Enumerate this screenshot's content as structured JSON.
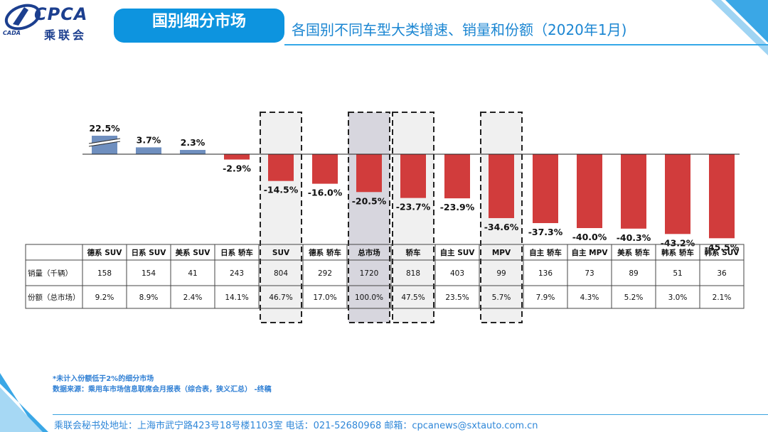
{
  "header": {
    "logo_en": "CPCA",
    "logo_cn": "乘联会",
    "logo_sub": "CADA",
    "tab_title": "国别细分市场",
    "title": "各国别不同车型大类增速、销量和份额（2020年1月)"
  },
  "colors": {
    "positive_bar": "#6f8fbf",
    "negative_bar": "#d13c3c",
    "highlight_fill": "#f0f0f0",
    "highlight_dark_fill": "#d7d6de",
    "accent_blue": "#0d94df"
  },
  "chart_data": {
    "type": "bar",
    "title": "各国别不同车型大类增速、销量和份额（2020年1月)",
    "categories": [
      "德系 SUV",
      "日系 SUV",
      "美系 SUV",
      "日系 轿车",
      "SUV",
      "德系 轿车",
      "总市场",
      "轿车",
      "自主 SUV",
      "MPV",
      "自主 轿车",
      "自主 MPV",
      "美系 轿车",
      "韩系 轿车",
      "韩系 SUV"
    ],
    "series": [
      {
        "values": [
          22.5,
          3.7,
          2.3,
          -2.9,
          -14.5,
          -16.0,
          -20.5,
          -23.7,
          -23.9,
          -34.6,
          -37.3,
          -40.0,
          -40.3,
          -43.2,
          -45.5
        ]
      }
    ],
    "value_labels": [
      "22.5%",
      "3.7%",
      "2.3%",
      "-2.9%",
      "-14.5%",
      "-16.0%",
      "-20.5%",
      "-23.7%",
      "-23.9%",
      "-34.6%",
      "-37.3%",
      "-40.0%",
      "-40.3%",
      "-43.2%",
      "-45.5%"
    ],
    "axis_break_category": "德系 SUV",
    "highlighted_categories": [
      "SUV",
      "总市场",
      "轿车",
      "MPV"
    ],
    "table": {
      "rows": [
        {
          "label": "销量（千辆）",
          "values": [
            "158",
            "154",
            "41",
            "243",
            "804",
            "292",
            "1720",
            "818",
            "403",
            "99",
            "136",
            "73",
            "89",
            "51",
            "36"
          ]
        },
        {
          "label": "份额（总市场）",
          "values": [
            "9.2%",
            "8.9%",
            "2.4%",
            "14.1%",
            "46.7%",
            "17.0%",
            "100.0%",
            "47.5%",
            "23.5%",
            "5.7%",
            "7.9%",
            "4.3%",
            "5.2%",
            "3.0%",
            "2.1%"
          ]
        }
      ]
    }
  },
  "notes": {
    "note1": "*未计入份额低于2%的细分市场",
    "note2": "数据来源：乘用车市场信息联席会月报表（综合表，狭义汇总）  -终稿"
  },
  "footer": {
    "text": "乘联会秘书处地址：上海市武宁路423号18号楼1103室  电话：021-52680968   邮箱：cpcanews@sxtauto.com.cn"
  }
}
